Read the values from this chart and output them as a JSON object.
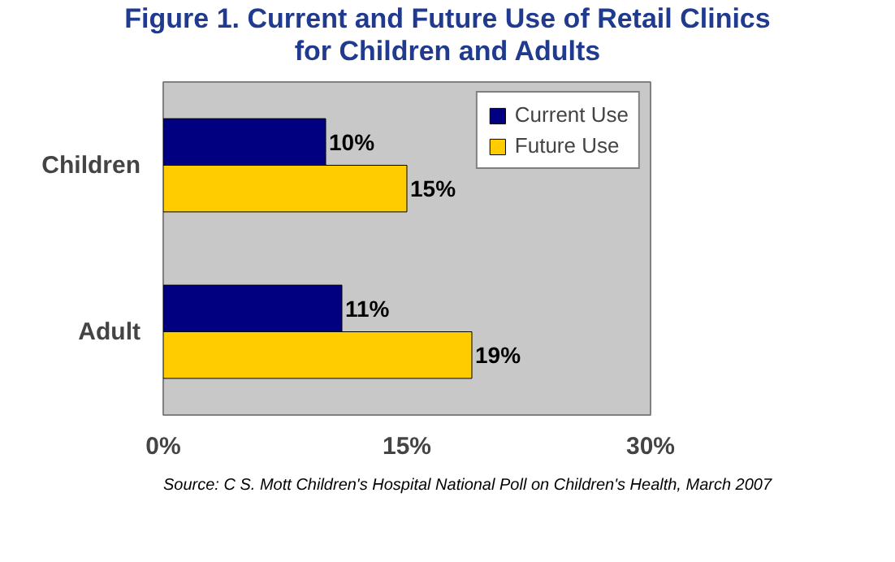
{
  "chart_data": {
    "type": "bar",
    "orientation": "horizontal",
    "title": "Figure 1. Current and Future Use of Retail Clinics\nfor Children and Adults",
    "categories": [
      "Children",
      "Adult"
    ],
    "series": [
      {
        "name": "Current Use",
        "color": "#000080",
        "values": [
          10,
          11
        ],
        "value_labels": [
          "10%",
          "11%"
        ]
      },
      {
        "name": "Future Use",
        "color": "#ffcc00",
        "values": [
          15,
          19
        ],
        "value_labels": [
          "15%",
          "19%"
        ]
      }
    ],
    "xlim": [
      0,
      30
    ],
    "xticks": [
      {
        "value": 0,
        "label": "0%"
      },
      {
        "value": 15,
        "label": "15%"
      },
      {
        "value": 30,
        "label": "30%"
      }
    ],
    "grid": false,
    "legend": "top right",
    "annotations": [
      "Source: C S. Mott Children's Hospital National Poll on Children's Health, March 2007"
    ]
  }
}
